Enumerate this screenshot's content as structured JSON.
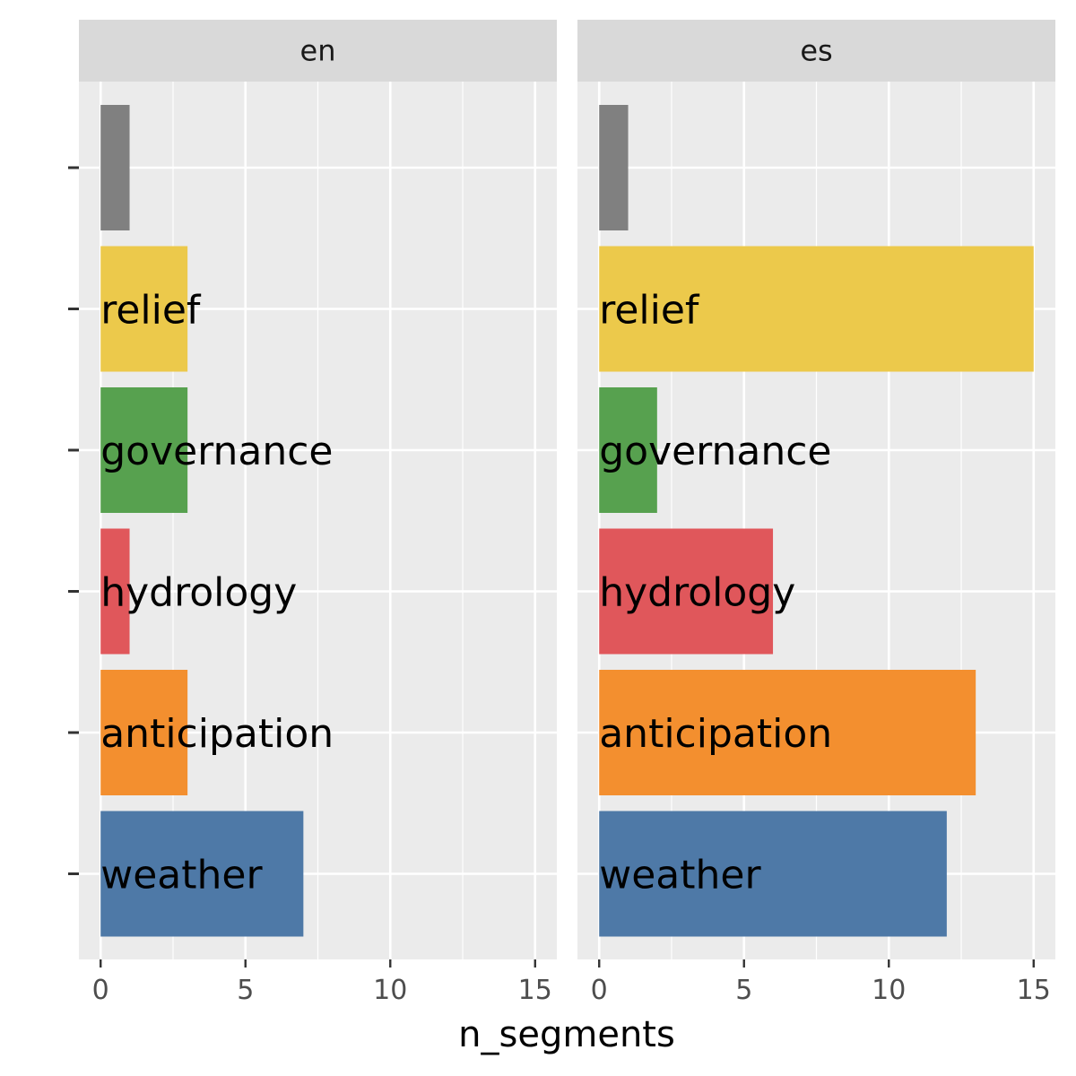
{
  "chart_data": {
    "type": "bar",
    "orientation": "horizontal",
    "facets": [
      "en",
      "es"
    ],
    "categories": [
      "",
      "relief",
      "governance",
      "hydrology",
      "anticipation",
      "weather"
    ],
    "category_colors": {
      "": "#808080",
      "relief": "#ECC94B",
      "governance": "#57A14F",
      "hydrology": "#E0575B",
      "anticipation": "#F38F2F",
      "weather": "#4E79A7"
    },
    "series": [
      {
        "facet": "en",
        "values": [
          1,
          3,
          3,
          1,
          3,
          7
        ]
      },
      {
        "facet": "es",
        "values": [
          1,
          15,
          2,
          6,
          13,
          12
        ]
      }
    ],
    "xlabel": "n_segments",
    "ylabel": "",
    "xlim": [
      -0.75,
      15.75
    ],
    "x_ticks": [
      0,
      5,
      10,
      15
    ],
    "x_tick_labels": [
      "0",
      "5",
      "10",
      "15"
    ],
    "grid": true,
    "legend": "none"
  }
}
